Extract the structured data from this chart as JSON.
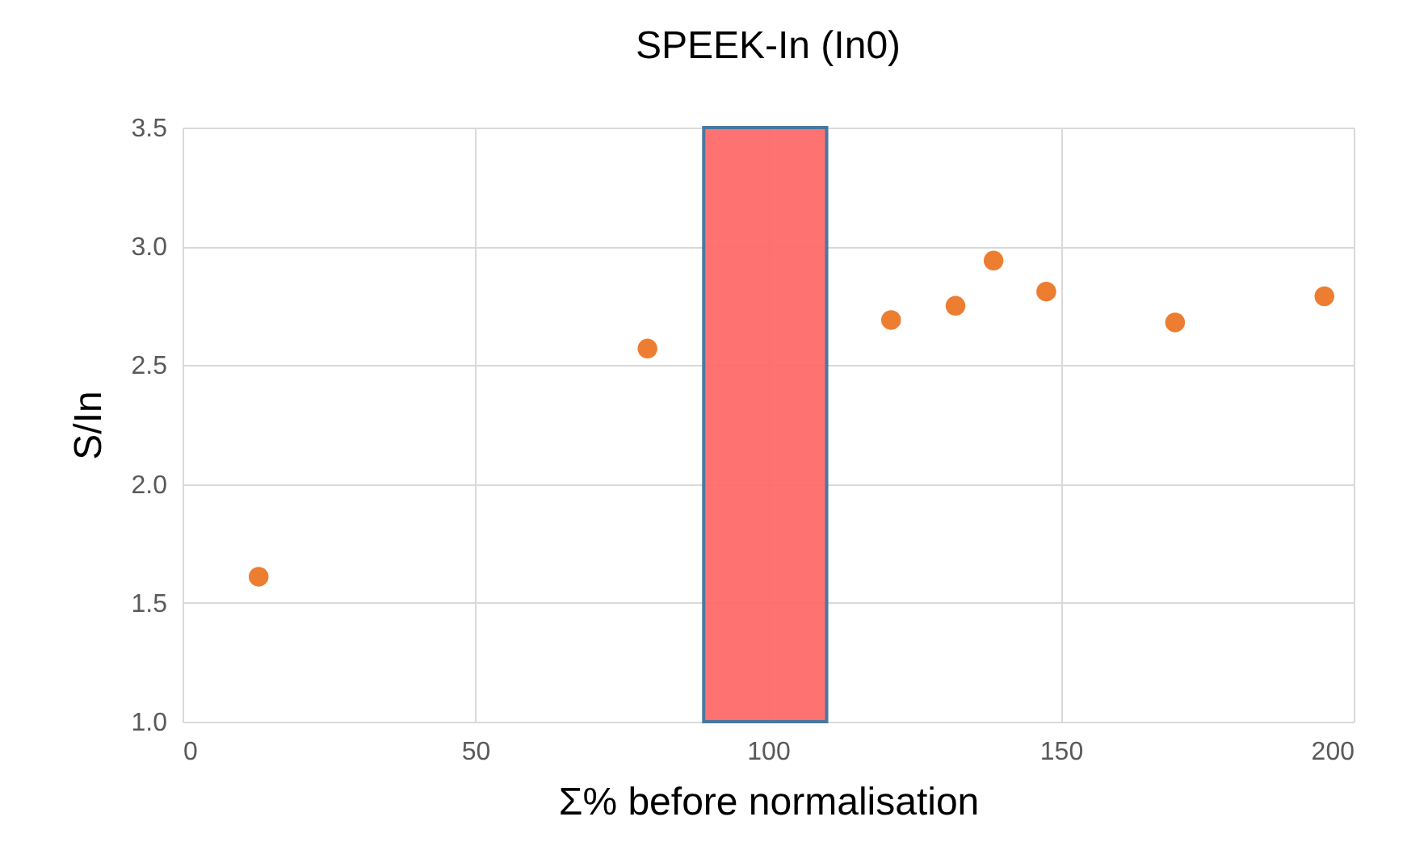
{
  "chart_data": {
    "type": "scatter",
    "title": "SPEEK-In (In0)",
    "xlabel": "Σ% before normalisation",
    "ylabel": "S/In",
    "x": [
      13,
      79.4,
      121,
      132,
      138.5,
      147.5,
      169.5,
      195
    ],
    "series": [
      {
        "color": "#ed7d31",
        "values": [
          1.61,
          2.57,
          2.69,
          2.75,
          2.94,
          2.81,
          2.68,
          2.79
        ]
      }
    ],
    "xlim": [
      0,
      200
    ],
    "xticks": [
      0,
      50,
      100,
      150,
      200
    ],
    "ylim": [
      1,
      3.5
    ],
    "yticks": [
      {
        "value": 1,
        "label": "1.0"
      },
      {
        "value": 1.5,
        "label": "1.5"
      },
      {
        "value": 2,
        "label": "2.0"
      },
      {
        "value": 2.5,
        "label": "2.5"
      },
      {
        "value": 3,
        "label": "3.0"
      },
      {
        "value": 3.5,
        "label": "3.5"
      }
    ],
    "bands": [
      {
        "axis": "x",
        "from": 89,
        "to": 110,
        "color": "#ff6b6b"
      }
    ],
    "grid": true,
    "marker": "circle"
  }
}
